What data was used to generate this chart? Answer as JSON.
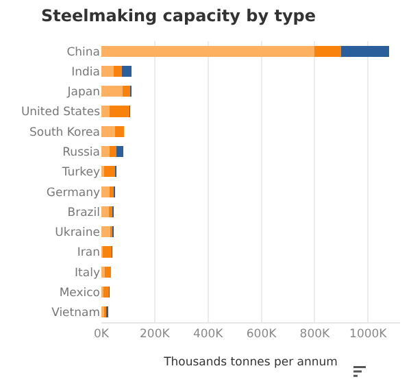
{
  "chart_data": {
    "type": "bar",
    "title": "Steelmaking capacity by type",
    "xlabel": "Thousands tonnes per annum",
    "orientation": "horizontal",
    "stacked": true,
    "grid": "x",
    "categories": [
      "China",
      "India",
      "Japan",
      "United States",
      "South Korea",
      "Russia",
      "Turkey",
      "Germany",
      "Brazil",
      "Ukraine",
      "Iran",
      "Italy",
      "Mexico",
      "Vietnam"
    ],
    "xlim": [
      0,
      1120
    ],
    "xticks": [
      {
        "value": 0,
        "label": "0K"
      },
      {
        "value": 200,
        "label": "200K"
      },
      {
        "value": 400,
        "label": "400K"
      },
      {
        "value": 600,
        "label": "600K"
      },
      {
        "value": 800,
        "label": "800K"
      },
      {
        "value": 1000,
        "label": "1000K"
      }
    ],
    "series": [
      {
        "color": "#fdb05f",
        "values": [
          800,
          47,
          79,
          32,
          52,
          32,
          11,
          32,
          27,
          34,
          4,
          12,
          7,
          9
        ]
      },
      {
        "color": "#f9820d",
        "values": [
          100,
          30,
          30,
          74,
          32,
          25,
          41,
          14,
          15,
          7,
          35,
          24,
          20,
          10
        ]
      },
      {
        "color": "#2b5f9b",
        "values": [
          180,
          37,
          5,
          3,
          null,
          24,
          4,
          5,
          4,
          5,
          2,
          null,
          4,
          7
        ]
      }
    ]
  }
}
